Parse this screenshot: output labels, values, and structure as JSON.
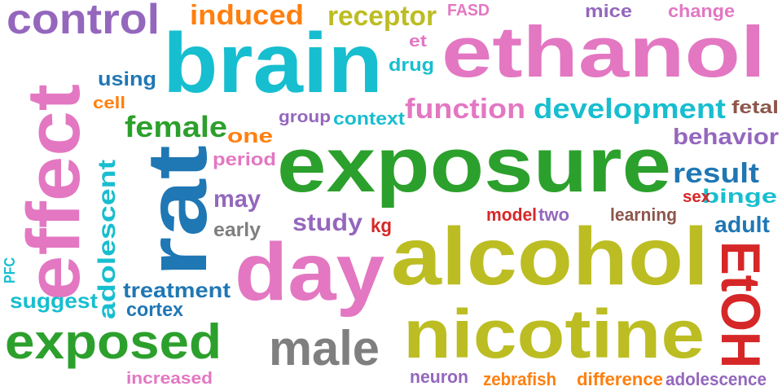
{
  "palette": {
    "purple": "#9467bd",
    "cyan": "#17becf",
    "pink": "#e377c2",
    "green": "#2ca02c",
    "blue": "#1f77b4",
    "olive": "#bcbd22",
    "orange": "#ff7f0e",
    "gray": "#7f7f7f",
    "red": "#d62728",
    "brown": "#8c564b"
  },
  "words": [
    {
      "text": "control"
    },
    {
      "text": "brain"
    },
    {
      "text": "induced"
    },
    {
      "text": "receptor"
    },
    {
      "text": "FASD"
    },
    {
      "text": "mice"
    },
    {
      "text": "change"
    },
    {
      "text": "ethanol"
    },
    {
      "text": "et"
    },
    {
      "text": "drug"
    },
    {
      "text": "using"
    },
    {
      "text": "cell"
    },
    {
      "text": "function"
    },
    {
      "text": "development"
    },
    {
      "text": "fetal"
    },
    {
      "text": "group"
    },
    {
      "text": "context"
    },
    {
      "text": "female"
    },
    {
      "text": "one"
    },
    {
      "text": "behavior"
    },
    {
      "text": "effect"
    },
    {
      "text": "period"
    },
    {
      "text": "exposure"
    },
    {
      "text": "result"
    },
    {
      "text": "rat"
    },
    {
      "text": "adolescent"
    },
    {
      "text": "may"
    },
    {
      "text": "binge"
    },
    {
      "text": "sex"
    },
    {
      "text": "early"
    },
    {
      "text": "study"
    },
    {
      "text": "model"
    },
    {
      "text": "two"
    },
    {
      "text": "learning"
    },
    {
      "text": "kg"
    },
    {
      "text": "adult"
    },
    {
      "text": "day"
    },
    {
      "text": "alcohol"
    },
    {
      "text": "EtOH"
    },
    {
      "text": "PFC"
    },
    {
      "text": "treatment"
    },
    {
      "text": "suggest"
    },
    {
      "text": "cortex"
    },
    {
      "text": "nicotine"
    },
    {
      "text": "exposed"
    },
    {
      "text": "male"
    },
    {
      "text": "increased"
    },
    {
      "text": "neuron"
    },
    {
      "text": "zebrafish"
    },
    {
      "text": "difference"
    },
    {
      "text": "adolescence"
    }
  ]
}
